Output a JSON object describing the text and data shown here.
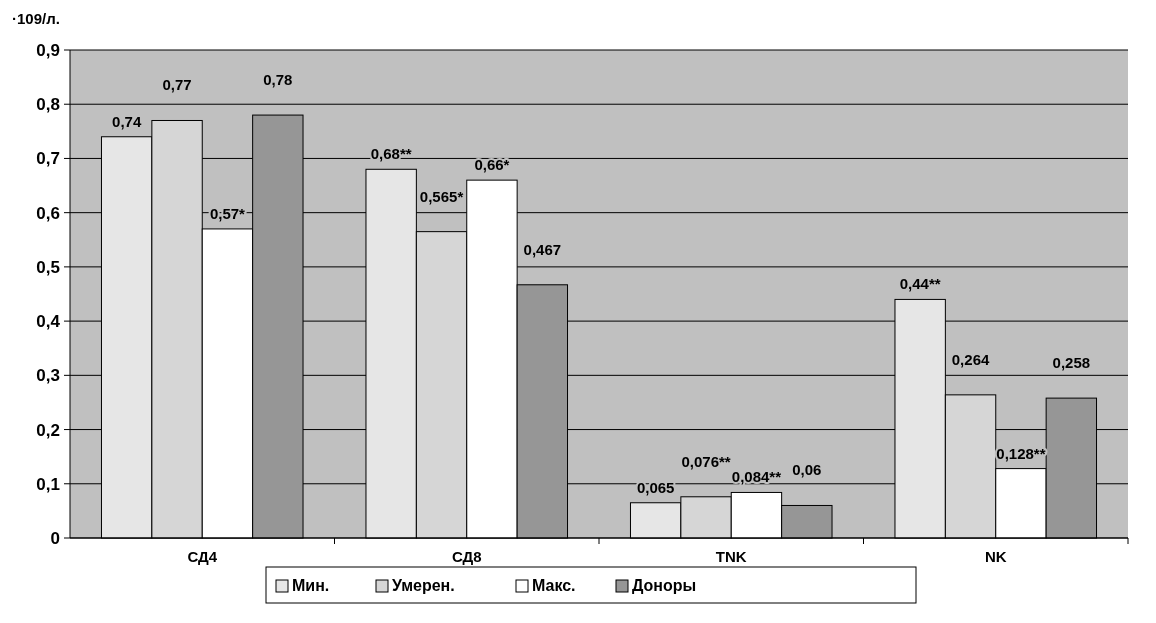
{
  "chart_data": {
    "type": "bar",
    "ylabel": "·109/л.",
    "categories": [
      "СД4",
      "СД8",
      "TNK",
      "NK"
    ],
    "series": [
      {
        "name": "Мин.",
        "color": "#e6e6e6",
        "values": [
          0.74,
          0.68,
          0.065,
          0.44
        ],
        "value_labels": [
          "0,74",
          "0,68**",
          "0,065",
          "0,44**"
        ]
      },
      {
        "name": "Умерен.",
        "color": "#d6d6d6",
        "values": [
          0.77,
          0.565,
          0.076,
          0.264
        ],
        "value_labels": [
          "0,77",
          "0,565*",
          "0,076**",
          "0,264"
        ]
      },
      {
        "name": "Макс.",
        "color": "#ffffff",
        "values": [
          0.57,
          0.66,
          0.084,
          0.128
        ],
        "value_labels": [
          "0,57*",
          "0,66*",
          "0,084**",
          "0,128**"
        ]
      },
      {
        "name": "Доноры",
        "color": "#969696",
        "values": [
          0.78,
          0.467,
          0.06,
          0.258
        ],
        "value_labels": [
          "0,78",
          "0,467",
          "0,06",
          "0,258"
        ]
      }
    ],
    "ylim": [
      0,
      0.9
    ],
    "yticks": [
      0,
      {
        "value": 0.1,
        "label": "0,1"
      },
      {
        "value": 0.2,
        "label": "0,2"
      },
      {
        "value": 0.3,
        "label": "0,3"
      },
      {
        "value": 0.4,
        "label": "0,4"
      },
      {
        "value": 0.5,
        "label": "0,5"
      },
      {
        "value": 0.6,
        "label": "0,6"
      },
      {
        "value": 0.7,
        "label": "0,7"
      },
      {
        "value": 0.8,
        "label": "0,8"
      },
      {
        "value": 0.9,
        "label": "0,9"
      }
    ],
    "grid": "y",
    "legend": "bottom"
  }
}
